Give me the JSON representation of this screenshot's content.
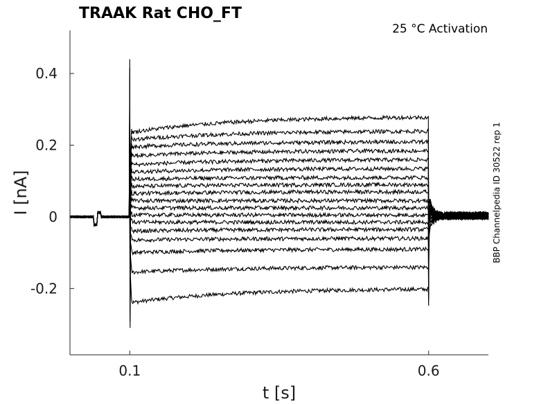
{
  "chart_data": {
    "type": "line",
    "title": "TRAAK  Rat  CHO_FT",
    "subtitle": "25 °C  Activation",
    "side_label": "BBP Channelpedia ID 30522 rep 1",
    "xlabel": "t [s]",
    "ylabel": "I [nA]",
    "xlim": [
      0.0,
      0.7
    ],
    "ylim": [
      -0.385,
      0.52
    ],
    "x_ticks": [
      0.1,
      0.6
    ],
    "x_tick_labels": [
      "0.1",
      "0.6"
    ],
    "y_ticks": [
      0.4,
      0.2,
      0.0,
      -0.2
    ],
    "y_tick_labels": [
      "0.4",
      "0.2",
      "0",
      "-0.2"
    ],
    "grid": false,
    "legend": "none",
    "color": "#000000",
    "step_on_s": 0.1,
    "step_off_s": 0.6,
    "transient_peak_nA": 0.44,
    "transient_trough_nA": -0.31,
    "series": [
      {
        "start": -0.24,
        "end": -0.2
      },
      {
        "start": -0.155,
        "end": -0.14
      },
      {
        "start": -0.1,
        "end": -0.09
      },
      {
        "start": -0.065,
        "end": -0.06
      },
      {
        "start": -0.04,
        "end": -0.035
      },
      {
        "start": -0.015,
        "end": -0.015
      },
      {
        "start": 0.005,
        "end": 0.005
      },
      {
        "start": 0.025,
        "end": 0.025
      },
      {
        "start": 0.045,
        "end": 0.045
      },
      {
        "start": 0.065,
        "end": 0.07
      },
      {
        "start": 0.085,
        "end": 0.09
      },
      {
        "start": 0.105,
        "end": 0.11
      },
      {
        "start": 0.125,
        "end": 0.135
      },
      {
        "start": 0.145,
        "end": 0.16
      },
      {
        "start": 0.17,
        "end": 0.185
      },
      {
        "start": 0.195,
        "end": 0.21
      },
      {
        "start": 0.215,
        "end": 0.24
      },
      {
        "start": 0.235,
        "end": 0.28
      }
    ]
  }
}
